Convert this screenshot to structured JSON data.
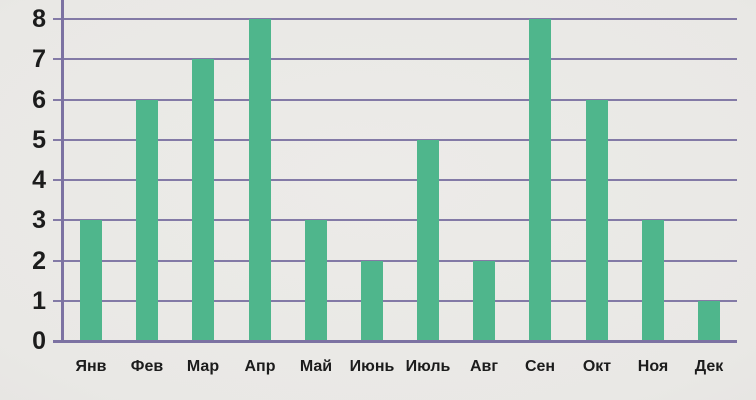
{
  "chart_data": {
    "type": "bar",
    "title": "",
    "xlabel": "",
    "ylabel": "",
    "categories": [
      "Янв",
      "Фев",
      "Мар",
      "Апр",
      "Май",
      "Июнь",
      "Июль",
      "Авг",
      "Сен",
      "Окт",
      "Ноя",
      "Дек"
    ],
    "values": [
      3,
      6,
      7,
      8,
      3,
      2,
      5,
      2,
      8,
      6,
      3,
      1
    ],
    "ylim": [
      0,
      8
    ],
    "yticks": [
      0,
      1,
      2,
      3,
      4,
      5,
      6,
      7,
      8
    ],
    "grid": true,
    "legend": false,
    "colors": {
      "bar": "#4fb68c",
      "gridline": "#837aa6",
      "axis": "#7c72a2",
      "background": "#e9e8e5",
      "label_text": "#1c1c1c"
    }
  }
}
